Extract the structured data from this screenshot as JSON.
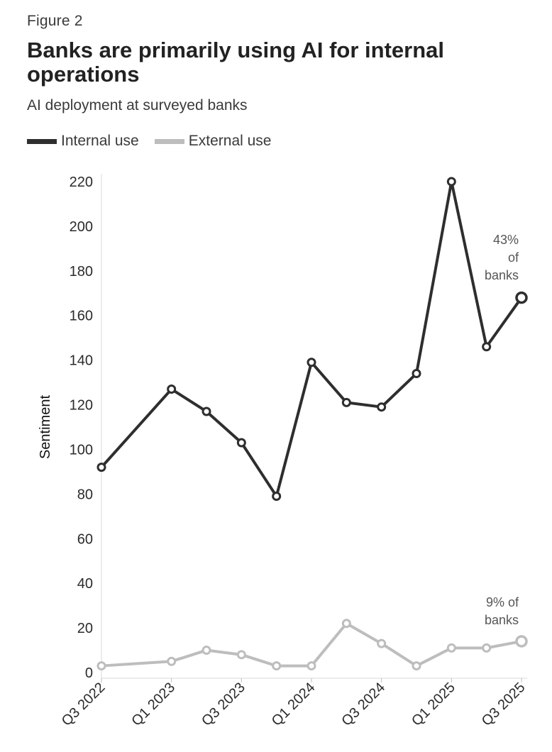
{
  "figure_label": "Figure 2",
  "chart_data": {
    "type": "line",
    "title": "Banks are primarily using AI for internal operations",
    "subtitle": "AI deployment at surveyed banks",
    "xlabel": "",
    "ylabel": "Sentiment",
    "ylim": [
      0,
      220
    ],
    "yticks": [
      0,
      20,
      40,
      60,
      80,
      100,
      120,
      140,
      160,
      180,
      200,
      220
    ],
    "x_tick_labels": [
      "Q3 2022",
      "Q1 2023",
      "Q3 2023",
      "Q1 2024",
      "Q3 2024",
      "Q1 2025",
      "Q3 2025"
    ],
    "x_tick_positions": [
      0,
      2,
      4,
      6,
      8,
      10,
      12
    ],
    "legend_position": "top-left",
    "series": [
      {
        "name": "Internal use",
        "color": "#2e2e2e",
        "x": [
          0,
          2,
          3,
          4,
          5,
          6,
          7,
          8,
          9,
          10,
          11,
          12
        ],
        "values": [
          92,
          127,
          117,
          103,
          79,
          139,
          121,
          119,
          134,
          220,
          146,
          168
        ]
      },
      {
        "name": "External use",
        "color": "#bdbdbd",
        "x": [
          0,
          2,
          3,
          4,
          5,
          6,
          7,
          8,
          9,
          10,
          11,
          12
        ],
        "values": [
          3,
          5,
          10,
          8,
          3,
          3,
          22,
          13,
          3,
          11,
          11,
          14
        ]
      }
    ],
    "annotations": [
      {
        "series": "Internal use",
        "lines": [
          "43%",
          "of",
          "banks"
        ]
      },
      {
        "series": "External use",
        "lines": [
          "9% of",
          "banks"
        ]
      }
    ]
  }
}
